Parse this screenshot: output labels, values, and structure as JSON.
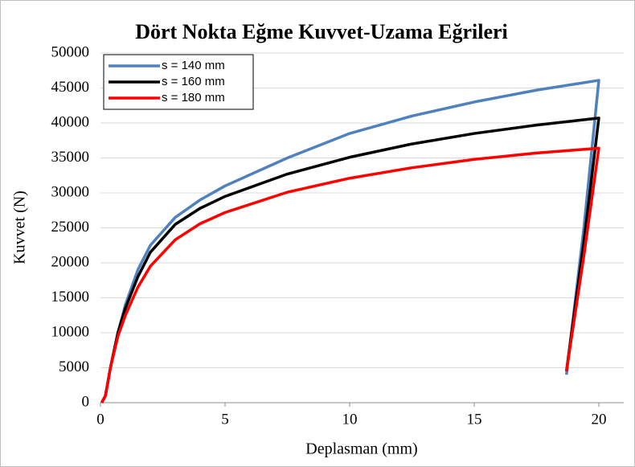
{
  "chart_data": {
    "type": "line",
    "title": "Dört Nokta Eğme Kuvvet-Uzama Eğrileri",
    "xlabel": "Deplasman (mm)",
    "ylabel": "Kuvvet (N)",
    "xlim": [
      0,
      21
    ],
    "xticks": [
      0,
      5,
      10,
      15,
      20
    ],
    "ylim": [
      0,
      50000
    ],
    "yticks": [
      0,
      5000,
      10000,
      15000,
      20000,
      25000,
      30000,
      35000,
      40000,
      45000,
      50000
    ],
    "grid": true,
    "legend": "upper left",
    "series": [
      {
        "name": "s = 140 mm",
        "color": "#4f81bd",
        "x": [
          0.05,
          0.2,
          0.4,
          0.7,
          1,
          1.5,
          2,
          3,
          4,
          5,
          7.5,
          10,
          12.5,
          15,
          17.5,
          20,
          19.4,
          18.7
        ],
        "values": [
          0,
          1000,
          5000,
          10000,
          14000,
          19000,
          22500,
          26500,
          29000,
          31000,
          35000,
          38500,
          41000,
          43000,
          44700,
          46100,
          25000,
          4000
        ]
      },
      {
        "name": "s = 160 mm",
        "color": "#000000",
        "x": [
          0.05,
          0.2,
          0.4,
          0.7,
          1,
          1.5,
          2,
          3,
          4,
          5,
          7.5,
          10,
          12.5,
          15,
          17.5,
          20,
          19.4,
          18.7
        ],
        "values": [
          0,
          1000,
          5000,
          10000,
          13500,
          18000,
          21500,
          25500,
          27800,
          29500,
          32700,
          35100,
          37000,
          38500,
          39700,
          40700,
          23000,
          4500
        ]
      },
      {
        "name": "s = 180 mm",
        "color": "#ff0000",
        "x": [
          0.05,
          0.2,
          0.4,
          0.7,
          1,
          1.5,
          2,
          3,
          4,
          5,
          7.5,
          10,
          12.5,
          15,
          17.5,
          20,
          19.4,
          18.7
        ],
        "values": [
          0,
          1000,
          5000,
          9500,
          12500,
          16500,
          19500,
          23300,
          25600,
          27200,
          30100,
          32100,
          33600,
          34800,
          35700,
          36400,
          21000,
          4500
        ]
      }
    ]
  }
}
